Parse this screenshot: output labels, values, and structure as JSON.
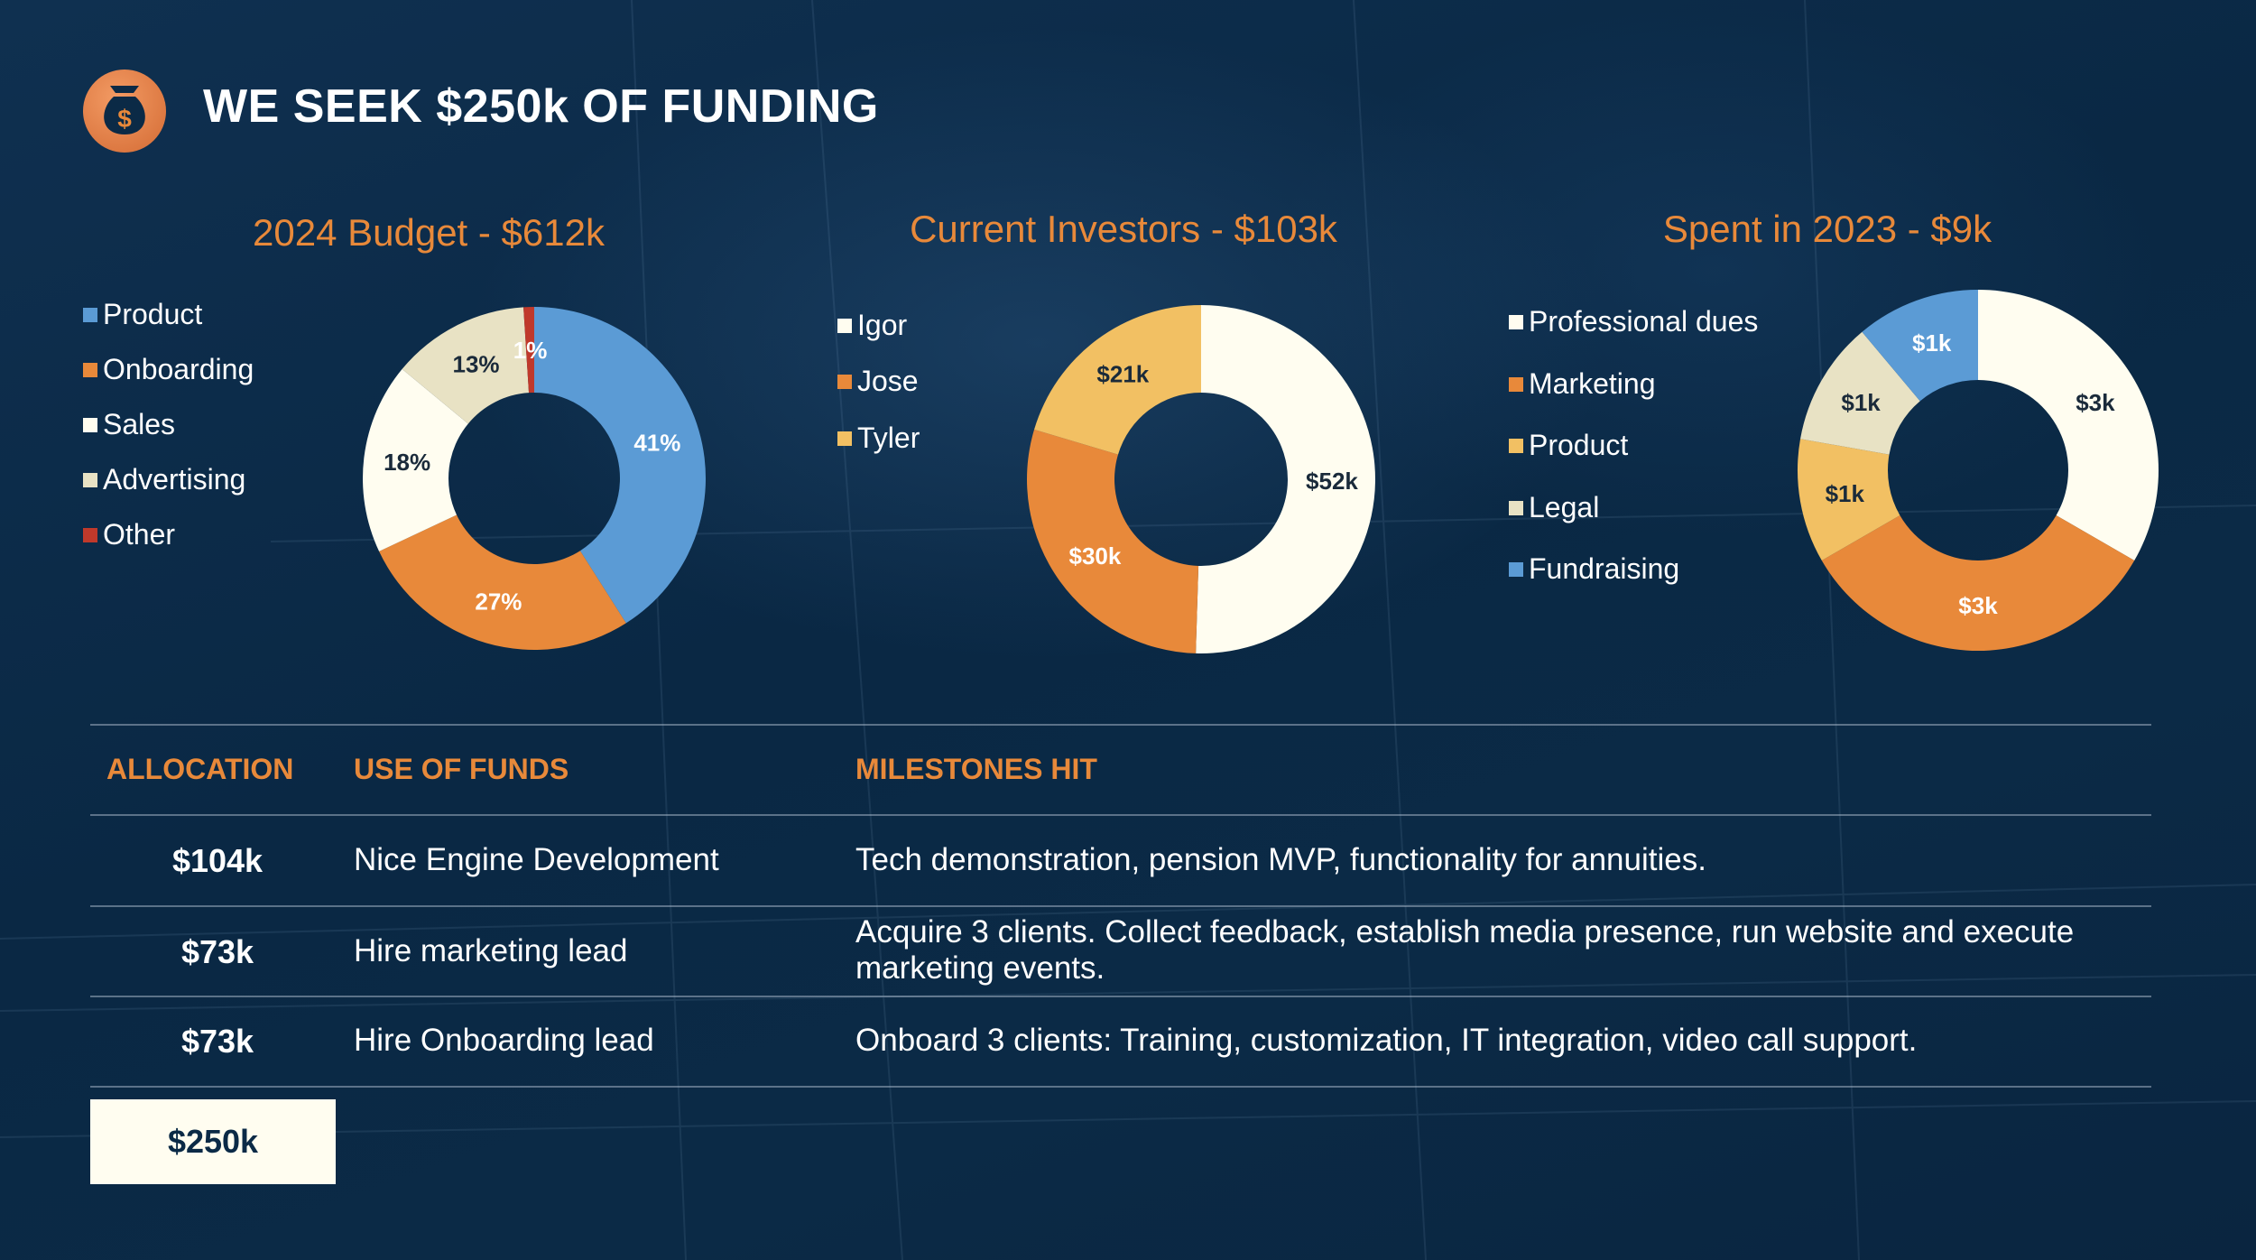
{
  "header": {
    "title": "WE SEEK $250k OF FUNDING",
    "icon": "money-bag-icon"
  },
  "colors": {
    "accent_orange": "#e8893a",
    "blue": "#5b9bd5",
    "cream": "#fffdf0",
    "beige": "#e8e2c4",
    "red": "#c0392b",
    "yellow": "#f2c063",
    "dark_text": "#1a2a3a"
  },
  "chart_data": [
    {
      "type": "pie",
      "variant": "donut",
      "title": "2024 Budget - $612k",
      "legend_position": "left",
      "categories": [
        "Product",
        "Onboarding",
        "Sales",
        "Advertising",
        "Other"
      ],
      "values": [
        41,
        27,
        18,
        13,
        1
      ],
      "unit": "%",
      "data_labels": [
        "41%",
        "27%",
        "18%",
        "13%",
        "1%"
      ],
      "colors": [
        "#5b9bd5",
        "#e8893a",
        "#fffdf0",
        "#e8e2c4",
        "#c0392b"
      ]
    },
    {
      "type": "pie",
      "variant": "donut",
      "title": "Current Investors - $103k",
      "legend_position": "left",
      "categories": [
        "Igor",
        "Jose",
        "Tyler"
      ],
      "values": [
        52,
        30,
        21
      ],
      "unit": "$k",
      "data_labels": [
        "$52k",
        "$30k",
        "$21k"
      ],
      "colors": [
        "#fffdf0",
        "#e8893a",
        "#f2c063"
      ]
    },
    {
      "type": "pie",
      "variant": "donut",
      "title": "Spent in 2023 - $9k",
      "legend_position": "left",
      "categories": [
        "Professional dues",
        "Marketing",
        "Product",
        "Legal",
        "Fundraising"
      ],
      "values": [
        3,
        3,
        1,
        1,
        1
      ],
      "unit": "$k",
      "data_labels": [
        "$3k",
        "$3k",
        "$1k",
        "$1k",
        "$1k"
      ],
      "colors": [
        "#fffdf0",
        "#e8893a",
        "#f2c063",
        "#e8e2c4",
        "#5b9bd5"
      ]
    }
  ],
  "table": {
    "headers": {
      "allocation": "ALLOCATION",
      "use": "USE OF FUNDS",
      "milestones": "MILESTONES HIT"
    },
    "rows": [
      {
        "allocation": "$104k",
        "use": "Nice Engine Development",
        "milestones": "Tech demonstration, pension MVP, functionality for annuities."
      },
      {
        "allocation": "$73k",
        "use": "Hire marketing lead",
        "milestones": "Acquire 3 clients. Collect feedback, establish media presence, run website and execute marketing events."
      },
      {
        "allocation": "$73k",
        "use": "Hire Onboarding lead",
        "milestones": "Onboard 3 clients: Training, customization, IT integration, video call support."
      }
    ],
    "total": "$250k"
  }
}
